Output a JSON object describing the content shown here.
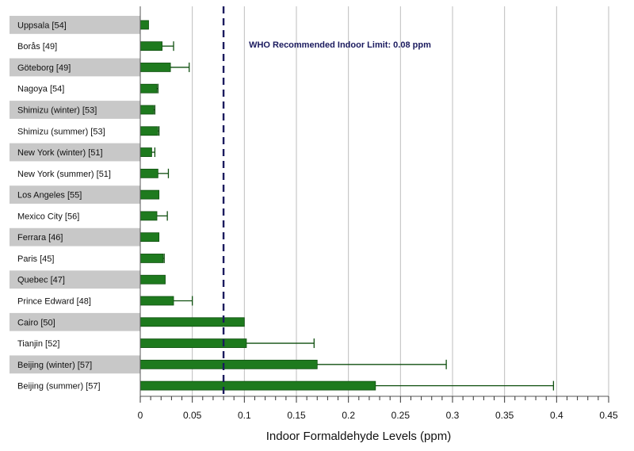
{
  "chart_data": {
    "type": "bar",
    "orientation": "horizontal",
    "xlabel": "Indoor Formaldehyde Levels (ppm)",
    "xlim": [
      0,
      0.45
    ],
    "xticks": [
      "0",
      "0.05",
      "0.1",
      "0.15",
      "0.2",
      "0.25",
      "0.3",
      "0.35",
      "0.4",
      "0.45"
    ],
    "tick_values": [
      0,
      0.05,
      0.1,
      0.15,
      0.2,
      0.25,
      0.3,
      0.35,
      0.4,
      0.45
    ],
    "grid": true,
    "categories": [
      "Uppsala [54]",
      "Borås [49]",
      "Göteborg [49]",
      "Nagoya [54]",
      "Shimizu (winter) [53]",
      "Shimizu (summer) [53]",
      "New York (winter) [51]",
      "New York (summer) [51]",
      "Los Angeles [55]",
      "Mexico City [56]",
      "Ferrara [46]",
      "Paris [45]",
      "Quebec [47]",
      "Prince Edward [48]",
      "Cairo [50]",
      "Tianjin [52]",
      "Beijing (winter) [57]",
      "Beijing (summer) [57]"
    ],
    "values": [
      0.008,
      0.021,
      0.029,
      0.016,
      0.013,
      0.017,
      0.011,
      0.017,
      0.018,
      0.016,
      0.018,
      0.022,
      0.024,
      0.032,
      0.1,
      0.102,
      0.17,
      0.226
    ],
    "error_upper": [
      null,
      0.032,
      0.047,
      0.017,
      0.014,
      0.018,
      0.014,
      0.027,
      null,
      0.026,
      null,
      0.023,
      null,
      0.05,
      null,
      0.167,
      0.294,
      0.397
    ],
    "reference_line": {
      "value": 0.08,
      "label": "WHO Recommended Indoor Limit: 0.08 ppm",
      "style": "dashed"
    },
    "colors": {
      "bar": "#1e7a1e",
      "bar_edge": "#0f4f0f",
      "reference": "#1a1a5e",
      "label_band": "#c8c8c8",
      "grid": "#bdbdbd"
    }
  }
}
